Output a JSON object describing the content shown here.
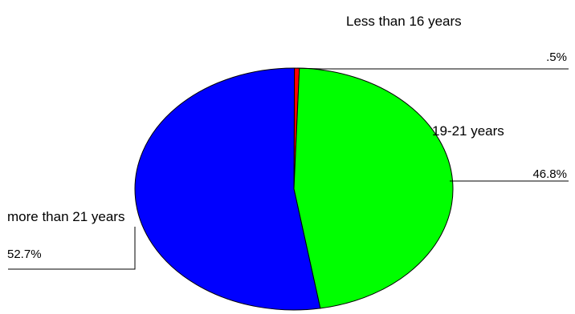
{
  "chart_data": {
    "type": "pie",
    "style": "3d-tilted",
    "slices": [
      {
        "label": "Less than 16 years",
        "value": 0.5,
        "value_label": ".5%",
        "color": "#ff0000"
      },
      {
        "label": "19-21 years",
        "value": 46.8,
        "value_label": "46.8%",
        "color": "#00ff00"
      },
      {
        "label": "more than 21 years",
        "value": 52.7,
        "value_label": "52.7%",
        "color": "#0000ff"
      }
    ],
    "legend": "none"
  }
}
